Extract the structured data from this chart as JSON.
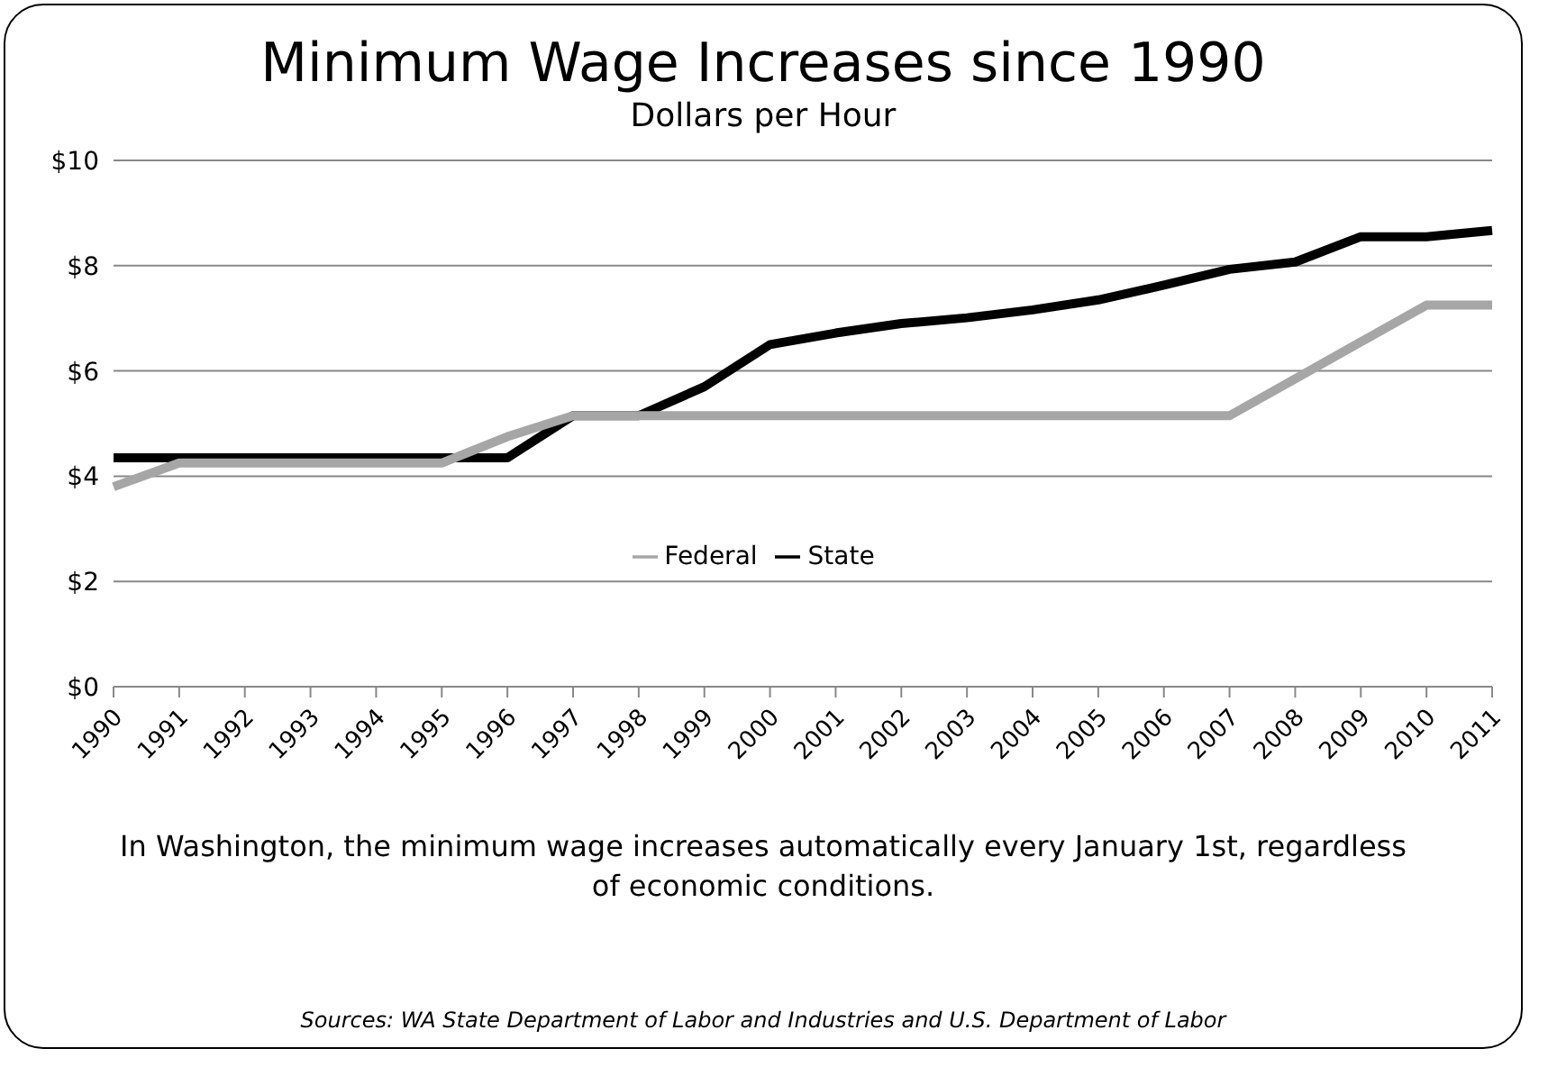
{
  "chart_data": {
    "type": "line",
    "title": "Minimum Wage Increases since 1990",
    "subtitle": "Dollars per Hour",
    "categories": [
      "1990",
      "1991",
      "1992",
      "1993",
      "1994",
      "1995",
      "1996",
      "1997",
      "1998",
      "1999",
      "2000",
      "2001",
      "2002",
      "2003",
      "2004",
      "2005",
      "2006",
      "2007",
      "2008",
      "2009",
      "2010",
      "2011"
    ],
    "series": [
      {
        "name": "State",
        "color": "#000000",
        "values": [
          4.35,
          4.35,
          4.35,
          4.35,
          4.35,
          4.35,
          4.35,
          5.15,
          5.15,
          5.7,
          6.5,
          6.72,
          6.9,
          7.01,
          7.16,
          7.35,
          7.63,
          7.93,
          8.07,
          8.55,
          8.55,
          8.67
        ]
      },
      {
        "name": "Federal",
        "color": "#a6a6a6",
        "values": [
          3.8,
          4.25,
          4.25,
          4.25,
          4.25,
          4.25,
          4.75,
          5.15,
          5.15,
          5.15,
          5.15,
          5.15,
          5.15,
          5.15,
          5.15,
          5.15,
          5.15,
          5.15,
          5.85,
          6.55,
          7.25,
          7.25
        ]
      }
    ],
    "ylim": [
      0,
      10
    ],
    "yticks": [
      {
        "value": 0,
        "label": "$0"
      },
      {
        "value": 2,
        "label": "$2"
      },
      {
        "value": 4,
        "label": "$4"
      },
      {
        "value": 6,
        "label": "$6"
      },
      {
        "value": 8,
        "label": "$8"
      },
      {
        "value": 10,
        "label": "$10"
      }
    ],
    "grid": "y",
    "legend": "bottom",
    "marker": "none",
    "line_style": "solid",
    "annotations": [
      "In Washington, the minimum wage increases automatically every January 1st, regardless of economic conditions.",
      "Sources: WA State Department of Labor and Industries and U.S. Department of Labor"
    ]
  }
}
